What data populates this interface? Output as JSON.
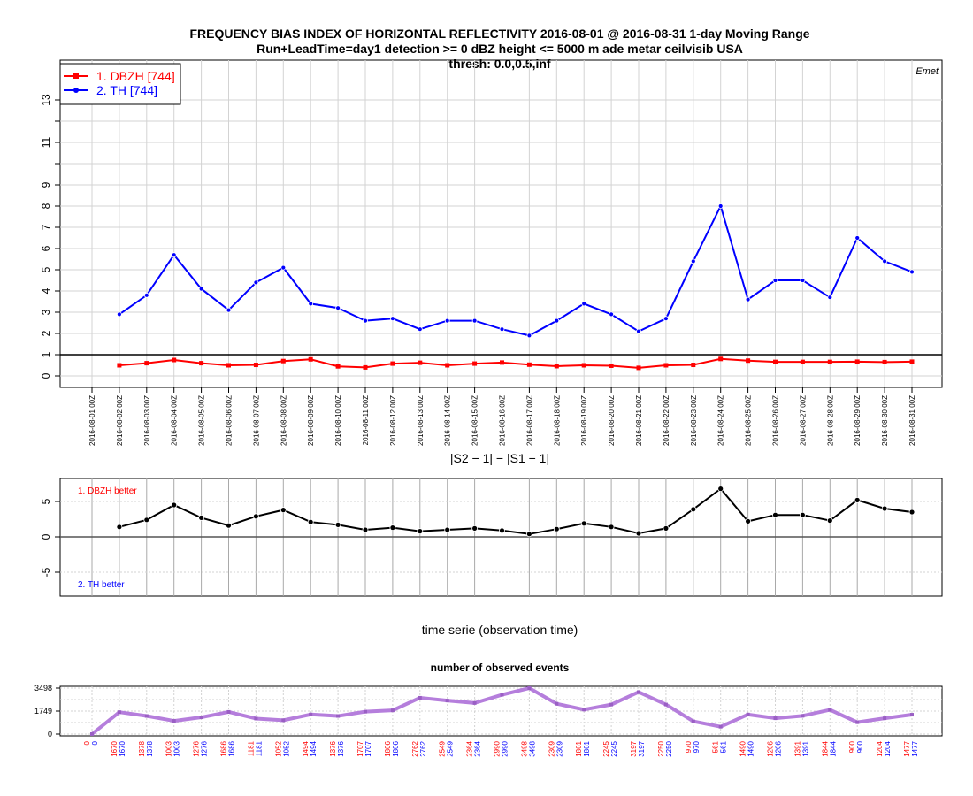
{
  "chart_data": [
    {
      "type": "line",
      "title": "FREQUENCY BIAS INDEX OF HORIZONTAL REFLECTIVITY 2016-08-01 @ 2016-08-31 1-day Moving Range",
      "subtitle": "Run+LeadTime=day1 detection >= 0 dBZ height <= 5000 m ade metar ceilvisib USA",
      "subtitle2": "thresh: 0.0,0.5,inf",
      "corner_label": "Emet",
      "x": [
        "2016-08-01 00Z",
        "2016-08-02 00Z",
        "2016-08-03 00Z",
        "2016-08-04 00Z",
        "2016-08-05 00Z",
        "2016-08-06 00Z",
        "2016-08-07 00Z",
        "2016-08-08 00Z",
        "2016-08-09 00Z",
        "2016-08-10 00Z",
        "2016-08-11 00Z",
        "2016-08-12 00Z",
        "2016-08-13 00Z",
        "2016-08-14 00Z",
        "2016-08-15 00Z",
        "2016-08-16 00Z",
        "2016-08-17 00Z",
        "2016-08-18 00Z",
        "2016-08-19 00Z",
        "2016-08-20 00Z",
        "2016-08-21 00Z",
        "2016-08-22 00Z",
        "2016-08-23 00Z",
        "2016-08-24 00Z",
        "2016-08-25 00Z",
        "2016-08-26 00Z",
        "2016-08-27 00Z",
        "2016-08-28 00Z",
        "2016-08-29 00Z",
        "2016-08-30 00Z",
        "2016-08-31 00Z"
      ],
      "series": [
        {
          "name": "1. DBZH [744]",
          "color": "#ff0000",
          "values": [
            null,
            0.5,
            0.6,
            0.75,
            0.6,
            0.5,
            0.52,
            0.7,
            0.78,
            0.45,
            0.4,
            0.58,
            0.62,
            0.5,
            0.58,
            0.63,
            0.53,
            0.46,
            0.5,
            0.48,
            0.38,
            0.5,
            0.52,
            0.8,
            0.72,
            0.66,
            0.66,
            0.66,
            0.67,
            0.65,
            0.67
          ]
        },
        {
          "name": "2. TH [744]",
          "color": "#0000ff",
          "values": [
            null,
            2.9,
            3.8,
            5.7,
            4.1,
            3.1,
            4.4,
            5.1,
            3.4,
            3.2,
            2.6,
            2.7,
            2.2,
            2.6,
            2.6,
            2.2,
            1.9,
            2.6,
            3.4,
            2.9,
            2.1,
            2.7,
            5.4,
            8.0,
            3.6,
            4.5,
            4.5,
            3.7,
            6.5,
            5.4,
            4.9
          ]
        }
      ],
      "y_ticks": [
        "0",
        "1",
        "2",
        "3",
        "4",
        "5",
        "6",
        "7",
        "8",
        "9",
        "11",
        "13"
      ],
      "ylim": [
        -0.5,
        14.2
      ],
      "reference_line": 1,
      "grid": true,
      "legend": "top-left"
    },
    {
      "type": "line",
      "title": "|S2 − 1| − |S1 − 1|",
      "xlabel": "time serie (observation time)",
      "annotation_top": "1. DBZH  better",
      "annotation_bottom": "2. TH  better",
      "values": [
        null,
        1.4,
        2.4,
        4.5,
        2.7,
        1.6,
        2.9,
        3.8,
        2.1,
        1.7,
        1.0,
        1.3,
        0.8,
        1.0,
        1.2,
        0.9,
        0.4,
        1.1,
        1.9,
        1.4,
        0.5,
        1.2,
        3.9,
        6.8,
        2.2,
        3.1,
        3.1,
        2.3,
        5.2,
        4.0,
        3.5
      ],
      "y_ticks": [
        "-5",
        "0",
        "5"
      ],
      "ylim": [
        -8.5,
        8.5
      ],
      "grid": true
    },
    {
      "type": "line",
      "title": "number of observed events",
      "y_ticks": [
        "0",
        "1749",
        "3498"
      ],
      "ylim": [
        0,
        3498
      ],
      "values": [
        0,
        1670,
        1378,
        1003,
        1276,
        1686,
        1181,
        1052,
        1494,
        1376,
        1707,
        1806,
        2762,
        2549,
        2364,
        2990,
        3498,
        2309,
        1861,
        2245,
        3197,
        2250,
        970,
        561,
        1490,
        1206,
        1391,
        1844,
        900,
        1204,
        1477
      ],
      "count_labels_red": [
        "0",
        "1670",
        "1378",
        "1003",
        "1276",
        "1686",
        "1181",
        "1052",
        "1494",
        "1376",
        "1707",
        "1806",
        "2762",
        "2549",
        "2364",
        "2990",
        "3498",
        "2309",
        "1861",
        "2245",
        "3197",
        "2250",
        "970",
        "561",
        "1490",
        "1206",
        "1391",
        "1844",
        "900",
        "1204",
        "1477"
      ],
      "count_labels_blue": [
        "0",
        "1670",
        "1378",
        "1003",
        "1276",
        "1686",
        "1181",
        "1052",
        "1494",
        "1376",
        "1707",
        "1806",
        "2762",
        "2549",
        "2364",
        "2990",
        "3498",
        "2309",
        "1861",
        "2245",
        "3197",
        "2250",
        "970",
        "561",
        "1490",
        "1206",
        "1391",
        "1844",
        "900",
        "1204",
        "1477"
      ],
      "line_color": "#b57edc",
      "grid": true
    }
  ]
}
